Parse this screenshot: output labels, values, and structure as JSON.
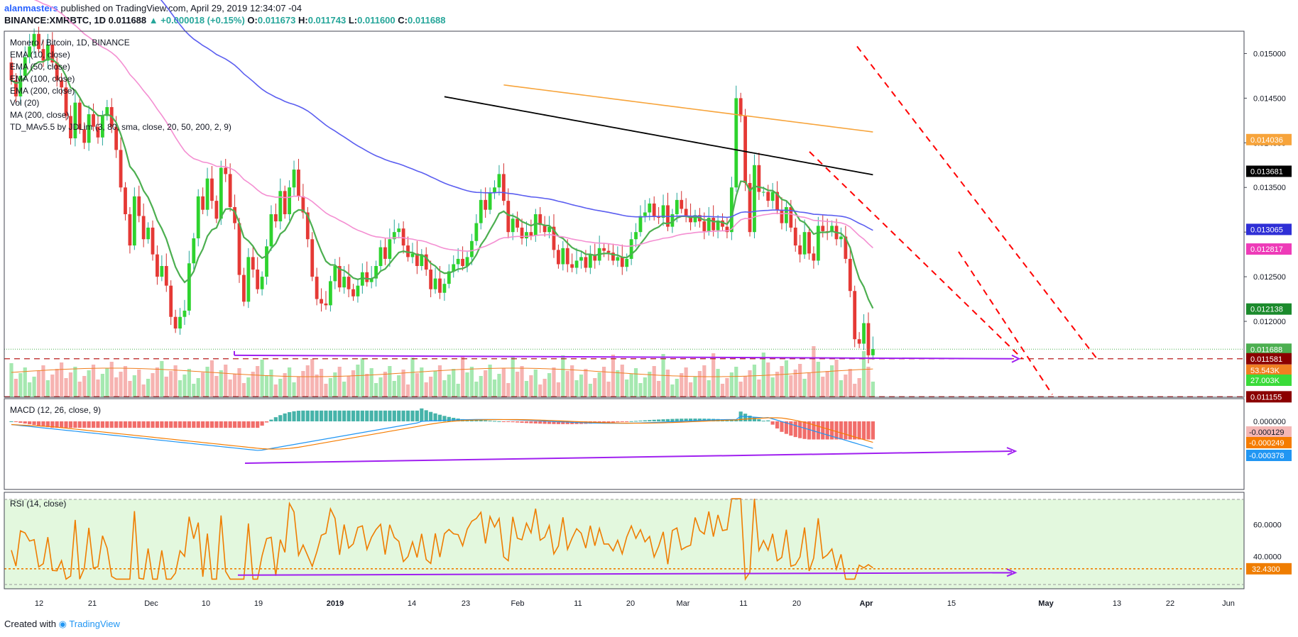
{
  "header": {
    "user": "alanmasters",
    "published": "published on TradingView.com, April 29, 2019 12:34:07 -04",
    "symbol": "BINANCE:XMRBTC, 1D",
    "last": "0.011688",
    "change": "▲ +0.000018 (+0.15%)",
    "open_label": "O:",
    "open": "0.011673",
    "high_label": "H:",
    "high": "0.011743",
    "low_label": "L:",
    "low": "0.011600",
    "close_label": "C:",
    "close": "0.011688"
  },
  "legend": [
    "Monero / Bitcoin, 1D, BINANCE",
    "EMA (10, close)",
    "EMA (50, close)",
    "EMA (100, close)",
    "EMA (200, close)",
    "Vol (20)",
    "MA (200, close)",
    "TD_MAv5.5 by JDLim (3, 80, sma, close, 20, 50, 200, 2, 9)"
  ],
  "macd_title": "MACD (12, 26, close, 9)",
  "rsi_title": "RSI (14, close)",
  "footer": {
    "created": "Created with",
    "brand": "TradingView"
  },
  "colors": {
    "up": "#26a69a",
    "down": "#ef5350",
    "ema10": "#4caf50",
    "ema50": "#f48fd2",
    "ema100": "#5b5ef0",
    "ema200": "#000000",
    "ma200": "#f7a43b",
    "arrow": "#a020f0",
    "trend": "#ff0000",
    "rsi": "#ef7d00",
    "rsi_band": "#e3f8de"
  },
  "chart_data": [
    {
      "type": "candlestick",
      "title": "Monero / Bitcoin, 1D, BINANCE",
      "x_tick_labels": [
        "12",
        "21",
        "Dec",
        "10",
        "19",
        "2019",
        "14",
        "23",
        "Feb",
        "11",
        "20",
        "Mar",
        "11",
        "20",
        "Apr",
        "15",
        "May",
        "13",
        "22",
        "Jun"
      ],
      "y_tick_labels": [
        "0.015000",
        "0.014500",
        "0.014000",
        "0.013500",
        "0.013000",
        "0.012500",
        "0.012000"
      ],
      "ylim": [
        0.01115,
        0.01525
      ],
      "price_labels": [
        {
          "name": "MA (200, close)",
          "value": "0.014036",
          "color": "#f7a43b"
        },
        {
          "name": "EMA (200, close)",
          "value": "0.013681",
          "color": "#000000"
        },
        {
          "name": "EMA (100, close)",
          "value": "0.013065",
          "color": "#2f2fd6"
        },
        {
          "name": "EMA (50, close)",
          "value": "0.012817",
          "color": "#ee3bb8"
        },
        {
          "name": "EMA (10, close)",
          "value": "0.012138",
          "color": "#1b8a2c"
        },
        {
          "name": "Last",
          "value": "0.011688",
          "color": "#4caf50"
        },
        {
          "name": "Support",
          "value": "0.011581",
          "color": "#8b0000"
        },
        {
          "name": "Support 2",
          "value": "0.011155",
          "color": "#8b0000"
        },
        {
          "name": "Vol MA",
          "value": "53.543K",
          "color": "#f07f21"
        },
        {
          "name": "Vol",
          "value": "27.003K",
          "color": "#3adb3a"
        }
      ],
      "close_series": [
        0.0147,
        0.01452,
        0.01475,
        0.01496,
        0.01508,
        0.01522,
        0.01505,
        0.01492,
        0.0151,
        0.0149,
        0.0147,
        0.01462,
        0.0143,
        0.01405,
        0.01445,
        0.01415,
        0.014,
        0.01432,
        0.01418,
        0.01406,
        0.0143,
        0.0144,
        0.01418,
        0.01392,
        0.0135,
        0.0132,
        0.01285,
        0.0134,
        0.01318,
        0.01292,
        0.01305,
        0.01275,
        0.0125,
        0.01262,
        0.0124,
        0.01205,
        0.01192,
        0.01205,
        0.01212,
        0.01265,
        0.01293,
        0.0134,
        0.01325,
        0.0136,
        0.01335,
        0.01315,
        0.01372,
        0.01365,
        0.01328,
        0.0131,
        0.01252,
        0.01222,
        0.01272,
        0.01258,
        0.01236,
        0.0125,
        0.01284,
        0.0132,
        0.01312,
        0.01346,
        0.0132,
        0.0135,
        0.0137,
        0.0134,
        0.01322,
        0.01292,
        0.0125,
        0.01225,
        0.0122,
        0.01218,
        0.01245,
        0.01262,
        0.01238,
        0.0125,
        0.01236,
        0.01228,
        0.0124,
        0.01255,
        0.01244,
        0.01248,
        0.01262,
        0.01283,
        0.0127,
        0.01292,
        0.013,
        0.01304,
        0.01285,
        0.01272,
        0.01276,
        0.01262,
        0.01275,
        0.01258,
        0.01236,
        0.01248,
        0.01232,
        0.01242,
        0.01256,
        0.01264,
        0.0127,
        0.01262,
        0.01272,
        0.0129,
        0.0131,
        0.01336,
        0.01325,
        0.01344,
        0.0135,
        0.01365,
        0.01335,
        0.013,
        0.01315,
        0.01305,
        0.01293,
        0.013,
        0.01296,
        0.0132,
        0.01308,
        0.013,
        0.01306,
        0.0128,
        0.01264,
        0.01282,
        0.01264,
        0.0126,
        0.01268,
        0.01272,
        0.0126,
        0.01275,
        0.01268,
        0.01282,
        0.01279,
        0.01277,
        0.01268,
        0.01272,
        0.01261,
        0.0127,
        0.01292,
        0.013,
        0.01318,
        0.01322,
        0.01332,
        0.01318,
        0.01316,
        0.0133,
        0.01306,
        0.0132,
        0.01336,
        0.01326,
        0.01318,
        0.01311,
        0.01319,
        0.01312,
        0.01301,
        0.01316,
        0.01302,
        0.01313,
        0.01306,
        0.013,
        0.0135,
        0.0145,
        0.0143,
        0.01355,
        0.013,
        0.01375,
        0.01345,
        0.01345,
        0.01335,
        0.01345,
        0.01325,
        0.0131,
        0.01328,
        0.01305,
        0.01285,
        0.01275,
        0.013,
        0.01276,
        0.01268,
        0.01307,
        0.01301,
        0.013,
        0.01307,
        0.01292,
        0.01295,
        0.0127,
        0.01234,
        0.0118,
        0.01175,
        0.01198,
        0.01162,
        0.01169
      ]
    },
    {
      "type": "bar",
      "title": "Vol (20)",
      "series_labels": [
        "53.543K",
        "27.003K"
      ]
    },
    {
      "type": "line",
      "title": "MACD (12, 26, close, 9)",
      "y_tick_labels": [
        "0.000000"
      ],
      "price_labels": [
        {
          "value": "-0.000129",
          "color": "#f4b7b5"
        },
        {
          "value": "-0.000249",
          "color": "#f57c00"
        },
        {
          "value": "-0.000378",
          "color": "#2196f3"
        }
      ]
    },
    {
      "type": "line",
      "title": "RSI (14, close)",
      "y_tick_labels": [
        "60.0000",
        "40.0000"
      ],
      "ylim": [
        20,
        80
      ],
      "price_labels": [
        {
          "value": "32.4300",
          "color": "#ef7d00"
        }
      ]
    }
  ]
}
